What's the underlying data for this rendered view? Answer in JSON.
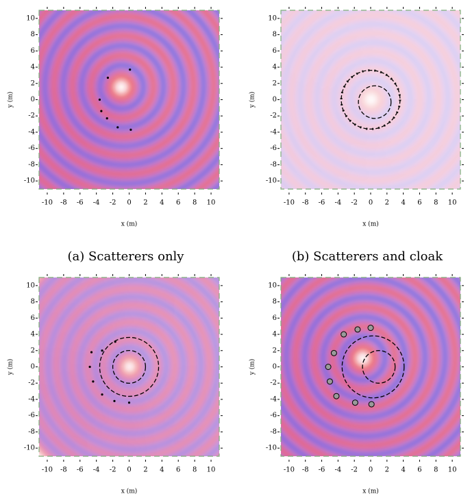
{
  "chart_data": [
    {
      "type": "scatter",
      "caption": "(a) Scatterers only",
      "xlabel": "x (m)",
      "ylabel": "y (m)",
      "xlim": [
        -11,
        11
      ],
      "ylim": [
        -11,
        11
      ],
      "xticks": [
        -10,
        -8,
        -6,
        -4,
        -2,
        0,
        2,
        4,
        6,
        8,
        10
      ],
      "yticks": [
        -10,
        -8,
        -6,
        -4,
        -2,
        0,
        2,
        4,
        6,
        8,
        10
      ],
      "x": [
        -2.6,
        0.1,
        -3.6,
        -3.4,
        -2.7,
        -1.4,
        0.2
      ],
      "y": [
        2.7,
        3.7,
        0.0,
        -1.4,
        -2.3,
        -3.4,
        -3.7
      ],
      "circles": []
    },
    {
      "type": "scatter",
      "caption": "(b) Scatterers and cloak",
      "xlabel": "x (m)",
      "ylabel": "y (m)",
      "xlim": [
        -11,
        11
      ],
      "ylim": [
        -11,
        11
      ],
      "xticks": [
        -10,
        -8,
        -6,
        -4,
        -2,
        0,
        2,
        4,
        6,
        8,
        10
      ],
      "yticks": [
        -10,
        -8,
        -6,
        -4,
        -2,
        0,
        2,
        4,
        6,
        8,
        10
      ],
      "x": [],
      "y": [],
      "circles": [
        {
          "cx": 0,
          "cy": 0,
          "r": 3.6
        },
        {
          "cx": 0.5,
          "cy": -0.3,
          "r": 2
        }
      ]
    },
    {
      "type": "scatter",
      "xlabel": "x (m)",
      "ylabel": "y (m)",
      "xlim": [
        -11,
        11
      ],
      "ylim": [
        -11,
        11
      ],
      "xticks": [
        -10,
        -8,
        -6,
        -4,
        -2,
        0,
        2,
        4,
        6,
        8,
        10
      ],
      "yticks": [
        -10,
        -8,
        -6,
        -4,
        -2,
        0,
        2,
        4,
        6,
        8,
        10
      ],
      "x": [
        -3.3,
        -1.7,
        -4.6,
        -4.8,
        -4.4,
        -3.3,
        -1.8,
        0.0
      ],
      "y": [
        2.0,
        3.1,
        1.8,
        0.0,
        -1.8,
        -3.4,
        -4.2,
        -4.4
      ],
      "circles": [
        {
          "cx": 0,
          "cy": 0,
          "r": 3.6
        },
        {
          "cx": 0,
          "cy": 0,
          "r": 2
        }
      ]
    },
    {
      "type": "scatter",
      "xlabel": "x (m)",
      "ylabel": "y (m)",
      "xlim": [
        -11,
        11
      ],
      "ylim": [
        -11,
        11
      ],
      "xticks": [
        -10,
        -8,
        -6,
        -4,
        -2,
        0,
        2,
        4,
        6,
        8,
        10
      ],
      "yticks": [
        -10,
        -8,
        -6,
        -4,
        -2,
        0,
        2,
        4,
        6,
        8,
        10
      ],
      "x": [
        -3.3,
        -1.6,
        0.0,
        -4.5,
        -5.2,
        -5.0,
        -4.2,
        -1.9,
        0.1
      ],
      "y": [
        4.0,
        4.6,
        4.8,
        1.7,
        0.0,
        -1.8,
        -3.6,
        -4.4,
        -4.6
      ],
      "circles": [
        {
          "cx": 0.3,
          "cy": 0,
          "r": 3.8
        },
        {
          "cx": 1,
          "cy": 0,
          "r": 2
        }
      ]
    }
  ]
}
